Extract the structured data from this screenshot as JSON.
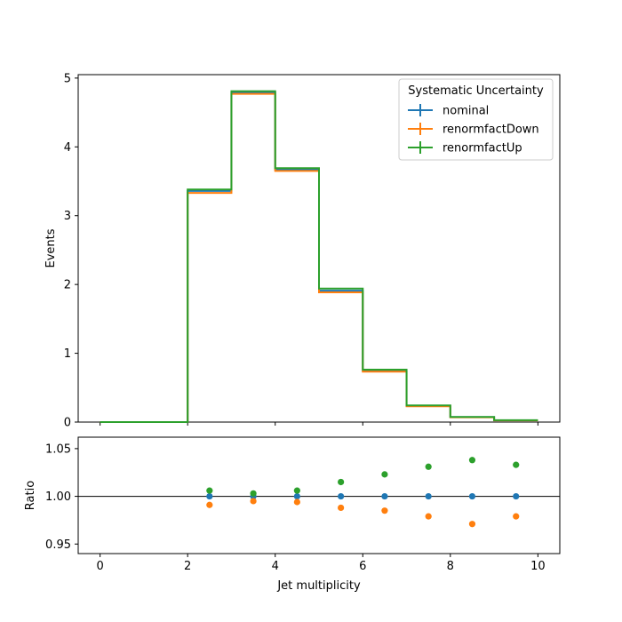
{
  "chart_data": [
    {
      "type": "line",
      "step": true,
      "ylabel": "Events",
      "xlim": [
        -0.5,
        10.5
      ],
      "ylim": [
        0,
        5.05
      ],
      "xticks": [
        0,
        2,
        4,
        6,
        8,
        10
      ],
      "yticks": [
        0,
        1,
        2,
        3,
        4,
        5
      ],
      "bin_edges": [
        0,
        1,
        2,
        3,
        4,
        5,
        6,
        7,
        8,
        9,
        10
      ],
      "legend": {
        "title": "Systematic Uncertainty",
        "placement": "upper right"
      },
      "series": [
        {
          "name": "nominal",
          "color": "#1f77b4",
          "values": [
            0,
            0,
            3.36,
            4.79,
            3.67,
            1.91,
            0.745,
            0.235,
            0.072,
            0.026
          ]
        },
        {
          "name": "renormfactDown",
          "color": "#ff7f0e",
          "values": [
            0,
            0,
            3.33,
            4.77,
            3.65,
            1.885,
            0.733,
            0.23,
            0.07,
            0.025
          ]
        },
        {
          "name": "renormfactUp",
          "color": "#2ca02c",
          "values": [
            0,
            0,
            3.38,
            4.81,
            3.69,
            1.94,
            0.762,
            0.242,
            0.075,
            0.027
          ]
        }
      ]
    },
    {
      "type": "scatter",
      "xlabel": "Jet multiplicity",
      "ylabel": "Ratio",
      "xlim": [
        -0.5,
        10.5
      ],
      "ylim": [
        0.94,
        1.062
      ],
      "xticks": [
        0,
        2,
        4,
        6,
        8,
        10
      ],
      "yticks": [
        0.95,
        1.0,
        1.05
      ],
      "reference_line": 1.0,
      "x": [
        2.5,
        3.5,
        4.5,
        5.5,
        6.5,
        7.5,
        8.5,
        9.5
      ],
      "series": [
        {
          "name": "nominal",
          "color": "#1f77b4",
          "values": [
            1.0,
            1.0,
            1.0,
            1.0,
            1.0,
            1.0,
            1.0,
            1.0
          ]
        },
        {
          "name": "renormfactDown",
          "color": "#ff7f0e",
          "values": [
            0.991,
            0.995,
            0.994,
            0.988,
            0.985,
            0.979,
            0.971,
            0.979
          ]
        },
        {
          "name": "renormfactUp",
          "color": "#2ca02c",
          "values": [
            1.006,
            1.003,
            1.006,
            1.015,
            1.023,
            1.031,
            1.038,
            1.033
          ]
        }
      ]
    }
  ]
}
